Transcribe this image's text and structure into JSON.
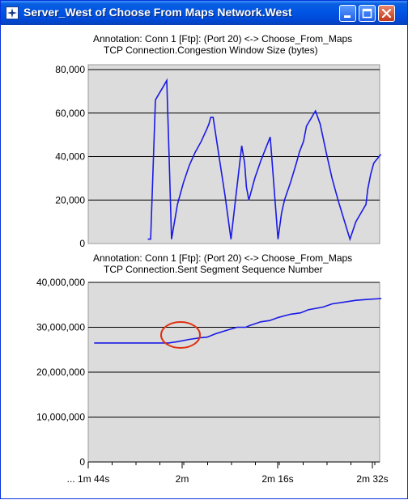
{
  "window": {
    "title": "Server_West of Choose From Maps Network.West",
    "buttons": [
      "minimize",
      "maximize",
      "close"
    ],
    "icon": "opnet-star-icon",
    "colors": {
      "titlebar": "#0055e5",
      "plot_bg": "#dcdcdc",
      "line": "#1a1ae6",
      "highlight": "#e03010"
    }
  },
  "panels": [
    {
      "annotation": "Annotation: Conn 1 [Ftp]: (Port 20) <-> Choose_From_Maps",
      "stat": "TCP Connection.Congestion Window Size (bytes)"
    },
    {
      "annotation": "Annotation: Conn 1 [Ftp]: (Port 20) <-> Choose_From_Maps",
      "stat": "TCP Connection.Sent Segment Sequence Number"
    }
  ],
  "x_axis": {
    "ticks": [
      "... 1m 44s",
      "2m",
      "2m 16s",
      "2m 32s"
    ]
  },
  "chart_data": [
    {
      "type": "line",
      "title": "TCP Connection.Congestion Window Size (bytes)",
      "yticks": [
        "0",
        "20,000",
        "40,000",
        "60,000",
        "80,000"
      ],
      "ylim": [
        0,
        80000
      ],
      "xlim": [
        104,
        153
      ],
      "grid": true,
      "x": [
        114,
        114.5,
        115.3,
        115.7,
        116.8,
        117.2,
        117.6,
        118,
        119,
        120,
        121,
        122,
        123,
        124,
        124.3,
        124.6,
        125,
        126,
        127,
        128,
        129.8,
        130.3,
        130.6,
        131,
        132,
        133,
        134.6,
        135.9,
        136.2,
        136.5,
        137,
        138,
        139,
        139.5,
        140.2,
        140.7,
        142.2,
        143,
        144,
        145,
        146,
        147,
        148,
        149,
        150.7,
        151,
        151.5,
        152,
        153.2
      ],
      "values": [
        2000,
        2000,
        66000,
        68000,
        73000,
        75000,
        40000,
        2000,
        18000,
        28000,
        36000,
        42000,
        47000,
        53000,
        55000,
        58000,
        58000,
        40000,
        22000,
        2000,
        45000,
        37000,
        26000,
        20000,
        30000,
        38000,
        49000,
        2000,
        8000,
        14000,
        20000,
        28000,
        37000,
        42000,
        47000,
        54000,
        61000,
        55000,
        42000,
        30000,
        20000,
        11000,
        2000,
        10000,
        18000,
        25000,
        32000,
        37000,
        41000
      ]
    },
    {
      "type": "line",
      "title": "TCP Connection.Sent Segment Sequence Number",
      "yticks": [
        "0",
        "10,000,000",
        "20,000,000",
        "30,000,000",
        "40,000,000"
      ],
      "ylim": [
        0,
        40000000
      ],
      "xlim": [
        104,
        153
      ],
      "grid": true,
      "x": [
        105,
        108,
        111,
        114,
        117.5,
        119,
        121,
        123,
        124,
        125.5,
        127,
        129,
        130.5,
        131,
        133,
        134.5,
        136,
        138,
        139.7,
        141,
        143.5,
        145,
        147,
        149,
        151,
        153.3
      ],
      "values": [
        26500000,
        26500000,
        26500000,
        26500000,
        26500000,
        26800000,
        27300000,
        27700000,
        27800000,
        28600000,
        29200000,
        30000000,
        30000000,
        30300000,
        31200000,
        31500000,
        32200000,
        32900000,
        33200000,
        33900000,
        34500000,
        35200000,
        35600000,
        36000000,
        36200000,
        36400000
      ],
      "annotations": [
        "red-ellipse-highlight"
      ]
    }
  ]
}
